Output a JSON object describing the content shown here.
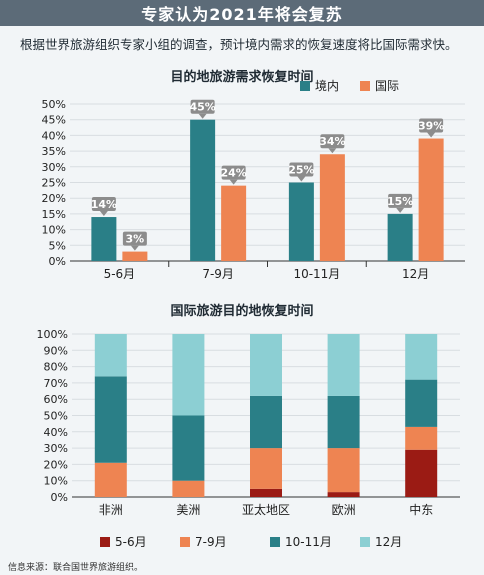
{
  "header": {
    "title": "专家认为2021年将会复苏"
  },
  "subtitle": "根据世界旅游组织专家小组的调查，预计境内需求的恢复速度将比国际需求快。",
  "source": "信息来源：联合国世界旅游组织。",
  "colors": {
    "domestic": "#2a7f87",
    "international": "#ee8452",
    "s5_6": "#9b1b14",
    "s7_9": "#ee8452",
    "s10_11": "#2a7f87",
    "s12": "#8ccfd3",
    "label_badge": "#8c8c8c"
  },
  "chart_data": [
    {
      "type": "bar",
      "title": "目的地旅游需求恢复时间",
      "categories": [
        "5-6月",
        "7-9月",
        "10-11月",
        "12月"
      ],
      "series": [
        {
          "name": "境内",
          "values": [
            14,
            45,
            25,
            15
          ]
        },
        {
          "name": "国际",
          "values": [
            3,
            24,
            34,
            39
          ]
        }
      ],
      "ylim": [
        0,
        50
      ],
      "yticks": [
        "0%",
        "5%",
        "10%",
        "15%",
        "20%",
        "25%",
        "30%",
        "35%",
        "40%",
        "45%",
        "50%"
      ],
      "data_labels": [
        [
          "14%",
          "45%",
          "25%",
          "15%"
        ],
        [
          "3%",
          "24%",
          "34%",
          "39%"
        ]
      ],
      "legend": "top-right"
    },
    {
      "type": "bar",
      "stacked": true,
      "title": "国际旅游目的地恢复时间",
      "categories": [
        "非洲",
        "美洲",
        "亚太地区",
        "欧洲",
        "中东"
      ],
      "series": [
        {
          "name": "5-6月",
          "values": [
            0,
            0,
            5,
            3,
            29
          ]
        },
        {
          "name": "7-9月",
          "values": [
            21,
            10,
            25,
            27,
            14
          ]
        },
        {
          "name": "10-11月",
          "values": [
            53,
            40,
            32,
            32,
            29
          ]
        },
        {
          "name": "12月",
          "values": [
            26,
            50,
            38,
            38,
            28
          ]
        }
      ],
      "ylim": [
        0,
        100
      ],
      "yticks": [
        "0%",
        "10%",
        "20%",
        "30%",
        "40%",
        "50%",
        "60%",
        "70%",
        "80%",
        "90%",
        "100%"
      ],
      "legend": "bottom"
    }
  ]
}
